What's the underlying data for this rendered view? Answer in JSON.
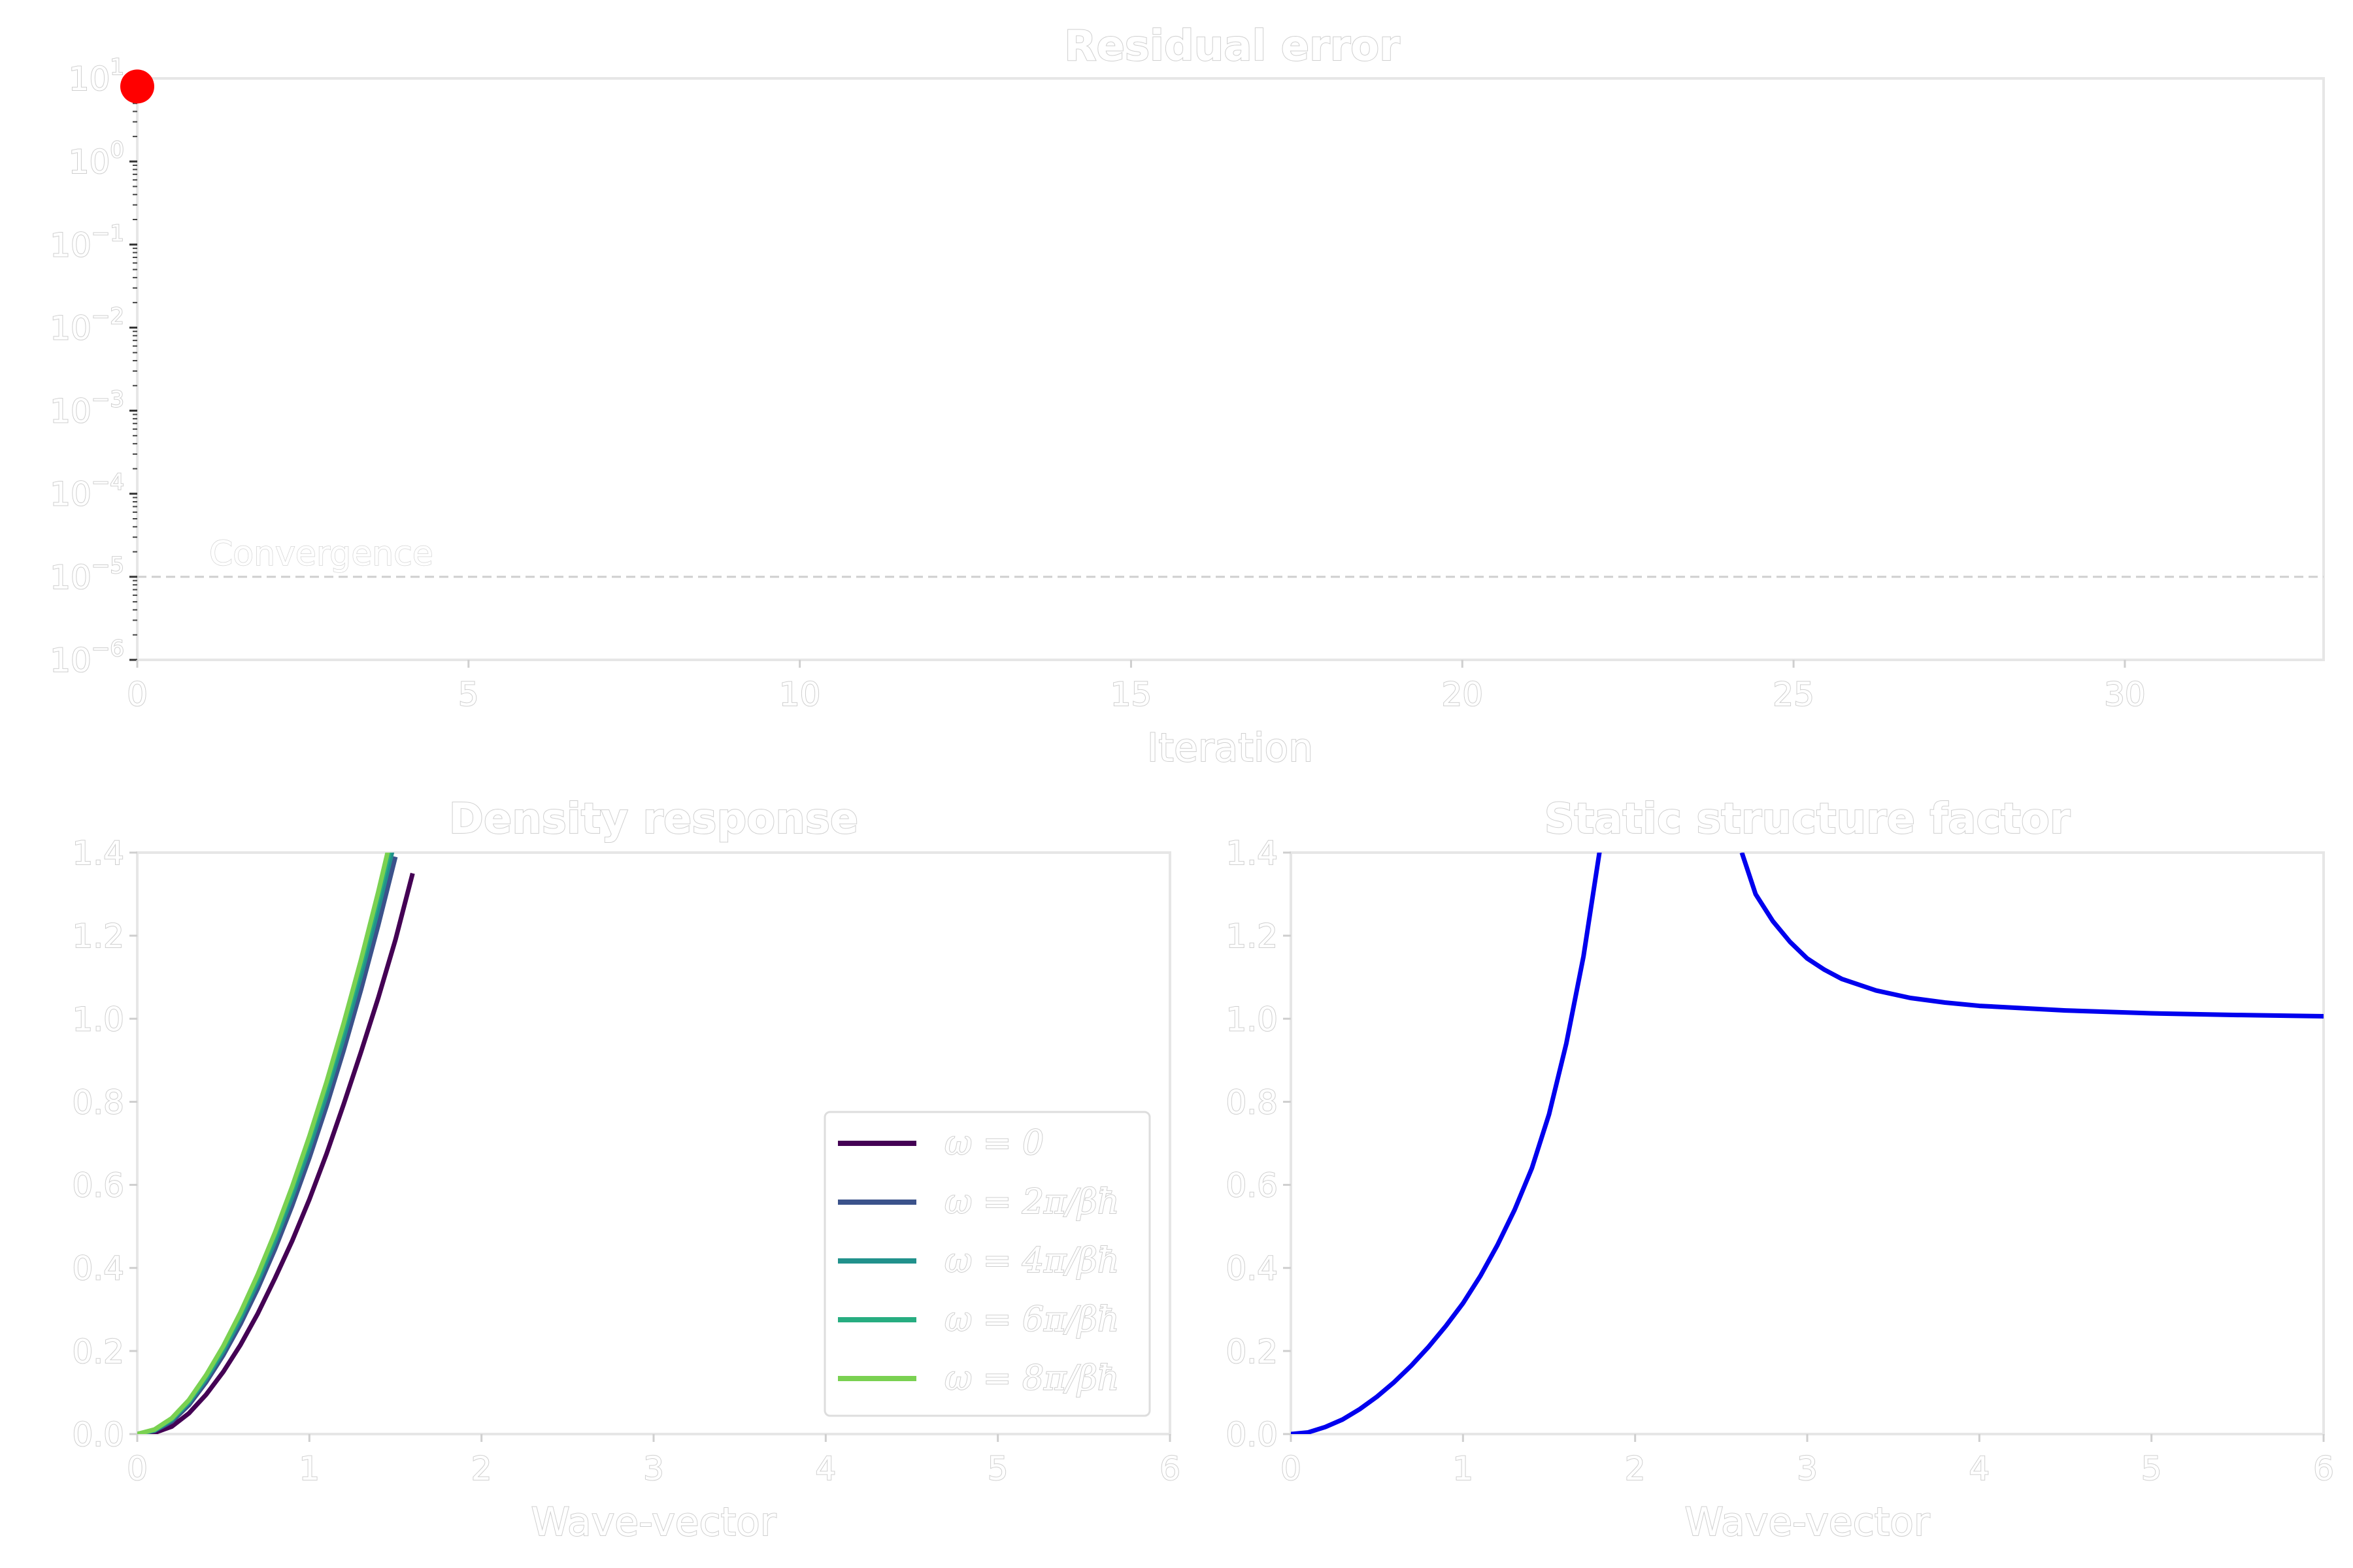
{
  "chart_data": [
    {
      "type": "scatter",
      "title": "Residual error",
      "xlabel": "Iteration",
      "ylabel": "",
      "xlim": [
        0,
        33
      ],
      "ylim": [
        1e-06,
        10
      ],
      "yscale": "log",
      "xticks": [
        "0",
        "5",
        "10",
        "15",
        "20",
        "25",
        "30"
      ],
      "yticks": [
        {
          "base": "10",
          "exp": "1"
        },
        {
          "base": "10",
          "exp": "0"
        },
        {
          "base": "10",
          "exp": "−1"
        },
        {
          "base": "10",
          "exp": "−2"
        },
        {
          "base": "10",
          "exp": "−3"
        },
        {
          "base": "10",
          "exp": "−4"
        },
        {
          "base": "10",
          "exp": "−5"
        },
        {
          "base": "10",
          "exp": "−6"
        }
      ],
      "series": [
        {
          "x": [
            0
          ],
          "y": [
            8
          ],
          "color": "#ff0000"
        }
      ],
      "reference_line": {
        "y": 1e-05,
        "label": "Convergence",
        "color": "#cccccc"
      },
      "grid": false
    },
    {
      "type": "line",
      "title": "Density response",
      "xlabel": "Wave-vector",
      "ylabel": "",
      "xlim": [
        0,
        6
      ],
      "ylim": [
        0,
        1.4
      ],
      "xticks": [
        "0",
        "1",
        "2",
        "3",
        "4",
        "5",
        "6"
      ],
      "yticks": [
        "0.0",
        "0.2",
        "0.4",
        "0.6",
        "0.8",
        "1.0",
        "1.2",
        "1.4"
      ],
      "legend_position": "lower-right",
      "series": [
        {
          "name": "ω = 0",
          "color": "#440154",
          "x": [
            0,
            0.1,
            0.2,
            0.3,
            0.4,
            0.5,
            0.6,
            0.7,
            0.8,
            0.9,
            1.0,
            1.1,
            1.2,
            1.3,
            1.4,
            1.5,
            1.6
          ],
          "y": [
            0,
            0.003,
            0.018,
            0.05,
            0.095,
            0.15,
            0.215,
            0.29,
            0.375,
            0.465,
            0.565,
            0.675,
            0.795,
            0.92,
            1.05,
            1.19,
            1.35
          ]
        },
        {
          "name": "ω = 2π/βħ",
          "color": "#3b528b",
          "x": [
            0,
            0.1,
            0.2,
            0.3,
            0.4,
            0.5,
            0.6,
            0.7,
            0.8,
            0.9,
            1.0,
            1.1,
            1.2,
            1.3,
            1.4,
            1.5
          ],
          "y": [
            0,
            0.008,
            0.03,
            0.07,
            0.125,
            0.19,
            0.265,
            0.35,
            0.445,
            0.55,
            0.665,
            0.79,
            0.925,
            1.07,
            1.225,
            1.39
          ]
        },
        {
          "name": "ω = 4π/βħ",
          "color": "#21918c",
          "x": [
            0,
            0.1,
            0.2,
            0.3,
            0.4,
            0.5,
            0.6,
            0.7,
            0.8,
            0.9,
            1.0,
            1.1,
            1.2,
            1.3,
            1.4,
            1.5
          ],
          "y": [
            0,
            0.009,
            0.034,
            0.076,
            0.133,
            0.2,
            0.278,
            0.366,
            0.464,
            0.572,
            0.69,
            0.818,
            0.956,
            1.105,
            1.265,
            1.435
          ]
        },
        {
          "name": "ω = 6π/βħ",
          "color": "#27ad81",
          "x": [
            0,
            0.1,
            0.2,
            0.3,
            0.4,
            0.5,
            0.6,
            0.7,
            0.8,
            0.9,
            1.0,
            1.1,
            1.2,
            1.3,
            1.4,
            1.5
          ],
          "y": [
            0,
            0.01,
            0.036,
            0.079,
            0.138,
            0.207,
            0.287,
            0.377,
            0.477,
            0.587,
            0.707,
            0.837,
            0.977,
            1.127,
            1.29,
            1.46
          ]
        },
        {
          "name": "ω = 8π/βħ",
          "color": "#7ad151",
          "x": [
            0,
            0.1,
            0.2,
            0.3,
            0.4,
            0.5,
            0.6,
            0.7,
            0.8,
            0.9,
            1.0,
            1.1,
            1.2,
            1.3,
            1.4,
            1.5
          ],
          "y": [
            0,
            0.011,
            0.038,
            0.082,
            0.142,
            0.212,
            0.293,
            0.384,
            0.485,
            0.596,
            0.717,
            0.848,
            0.99,
            1.142,
            1.305,
            1.48
          ]
        }
      ],
      "grid": false
    },
    {
      "type": "line",
      "title": "Static structure factor",
      "xlabel": "Wave-vector",
      "ylabel": "",
      "xlim": [
        0,
        6
      ],
      "ylim": [
        0,
        1.4
      ],
      "xticks": [
        "0",
        "1",
        "2",
        "3",
        "4",
        "5",
        "6"
      ],
      "yticks": [
        "0.0",
        "0.2",
        "0.4",
        "0.6",
        "0.8",
        "1.0",
        "1.2",
        "1.4"
      ],
      "series": [
        {
          "color": "#0000ee",
          "segments": [
            {
              "x": [
                0,
                0.1,
                0.2,
                0.3,
                0.4,
                0.5,
                0.6,
                0.7,
                0.8,
                0.9,
                1.0,
                1.1,
                1.2,
                1.3,
                1.4,
                1.5,
                1.6,
                1.7,
                1.8
              ],
              "y": [
                0,
                0.004,
                0.017,
                0.035,
                0.06,
                0.09,
                0.125,
                0.165,
                0.21,
                0.26,
                0.315,
                0.38,
                0.455,
                0.54,
                0.64,
                0.77,
                0.94,
                1.15,
                1.42
              ]
            },
            {
              "x": [
                2.62,
                2.7,
                2.8,
                2.9,
                3.0,
                3.1,
                3.2,
                3.4,
                3.6,
                3.8,
                4.0,
                4.5,
                5.0,
                5.5,
                6.0
              ],
              "y": [
                1.4,
                1.3,
                1.235,
                1.185,
                1.145,
                1.118,
                1.096,
                1.068,
                1.05,
                1.039,
                1.031,
                1.02,
                1.013,
                1.009,
                1.006
              ]
            }
          ]
        }
      ],
      "grid": false
    }
  ]
}
